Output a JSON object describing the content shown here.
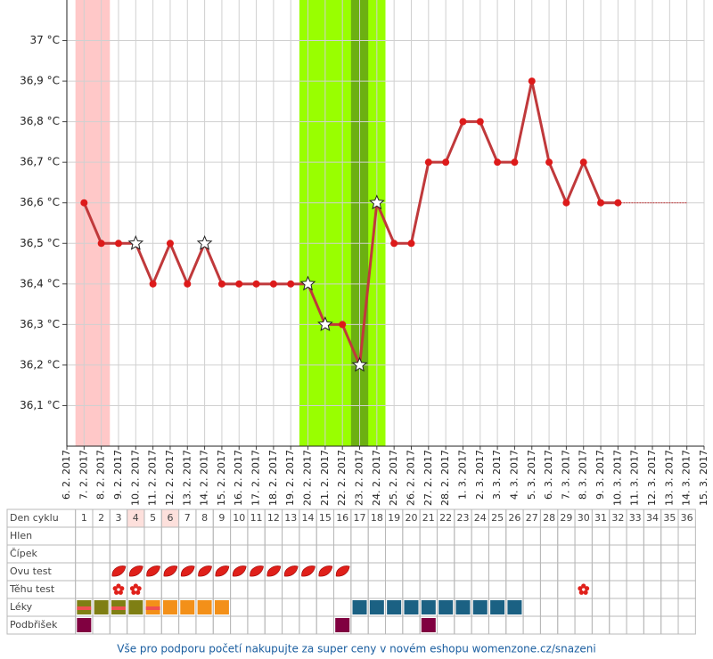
{
  "chart_data": {
    "type": "line",
    "x": [
      "6. 2. 2017",
      "7. 2. 2017",
      "8. 2. 2017",
      "9. 2. 2017",
      "10. 2. 2017",
      "11. 2. 2017",
      "12. 2. 2017",
      "13. 2. 2017",
      "14. 2. 2017",
      "15. 2. 2017",
      "16. 2. 2017",
      "17. 2. 2017",
      "18. 2. 2017",
      "19. 2. 2017",
      "20. 2. 2017",
      "21. 2. 2017",
      "22. 2. 2017",
      "23. 2. 2017",
      "24. 2. 2017",
      "25. 2. 2017",
      "26. 2. 2017",
      "27. 2. 2017",
      "28. 2. 2017",
      "1. 3. 2017",
      "2. 3. 2017",
      "3. 3. 2017",
      "4. 3. 2017",
      "5. 3. 2017",
      "6. 3. 2017",
      "7. 3. 2017",
      "8. 3. 2017",
      "9. 3. 2017",
      "10. 3. 2017",
      "11. 3. 2017",
      "12. 3. 2017",
      "13. 3. 2017",
      "14. 3. 2017",
      "15. 3. 2017"
    ],
    "series": [
      {
        "color": "#c0393b",
        "values": [
          null,
          36.6,
          36.5,
          36.5,
          36.5,
          36.4,
          36.5,
          36.4,
          36.5,
          36.4,
          36.4,
          36.4,
          36.4,
          36.4,
          36.4,
          36.3,
          36.3,
          36.2,
          36.6,
          36.5,
          36.5,
          36.7,
          36.7,
          36.8,
          36.8,
          36.7,
          36.7,
          36.9,
          36.7,
          36.6,
          36.7,
          36.6,
          36.6,
          null,
          null,
          null,
          null,
          null
        ],
        "markers": [
          null,
          "dot",
          "dot",
          "dot",
          "star",
          "dot",
          "dot",
          "dot",
          "star",
          "dot",
          "dot",
          "dot",
          "dot",
          "dot",
          "star",
          "star",
          "dot",
          "star",
          "star",
          "dot",
          "dot",
          "dot",
          "dot",
          "dot",
          "dot",
          "dot",
          "dot",
          "dot",
          "dot",
          "dot",
          "dot",
          "dot",
          "dot",
          null,
          null,
          null,
          null,
          null
        ]
      }
    ],
    "ylim": [
      36.0,
      37.1
    ],
    "yticks": [
      {
        "value": 36.1,
        "label": "36,1 °C"
      },
      {
        "value": 36.2,
        "label": "36,2 °C"
      },
      {
        "value": 36.3,
        "label": "36,3 °C"
      },
      {
        "value": 36.4,
        "label": "36,4 °C"
      },
      {
        "value": 36.5,
        "label": "36,5 °C"
      },
      {
        "value": 36.6,
        "label": "36,6 °C"
      },
      {
        "value": 36.7,
        "label": "36,7 °C"
      },
      {
        "value": 36.8,
        "label": "36,8 °C"
      },
      {
        "value": 36.9,
        "label": "36,9 °C"
      },
      {
        "value": 37.0,
        "label": "37 °C"
      }
    ],
    "grid": true,
    "bands": [
      {
        "first_day": 1,
        "last_day": 2,
        "color": "#ffc8c8"
      },
      {
        "first_day": 14,
        "last_day": 18,
        "color": "#99ff00"
      },
      {
        "first_day": 17,
        "last_day": 17,
        "color": "#6cb012"
      }
    ]
  },
  "table": {
    "header_label": "Den cyklu",
    "days": [
      1,
      2,
      3,
      4,
      5,
      6,
      7,
      8,
      9,
      10,
      11,
      12,
      13,
      14,
      15,
      16,
      17,
      18,
      19,
      20,
      21,
      22,
      23,
      24,
      25,
      26,
      27,
      28,
      29,
      30,
      31,
      32,
      33,
      34,
      35,
      36
    ],
    "highlighted_days": [
      4,
      6
    ],
    "rows": [
      {
        "label": "Hlen",
        "days": []
      },
      {
        "label": "Čípek",
        "days": []
      },
      {
        "label": "Ovu test",
        "icon": "drop",
        "color": "#e0201a",
        "days": [
          3,
          4,
          5,
          6,
          7,
          8,
          9,
          10,
          11,
          12,
          13,
          14,
          15,
          16
        ]
      },
      {
        "label": "Těhu test",
        "icon": "flower",
        "color": "#e0201a",
        "days": [
          3,
          4,
          30
        ]
      },
      {
        "label": "Léky",
        "icon": "pill",
        "items": [
          {
            "day": 1,
            "color": "#7f7f14",
            "stripe": "#f05050"
          },
          {
            "day": 2,
            "color": "#7f7f14"
          },
          {
            "day": 3,
            "color": "#7f7f14",
            "stripe": "#f05050"
          },
          {
            "day": 4,
            "color": "#7f7f14"
          },
          {
            "day": 5,
            "color": "#f39019",
            "stripe": "#f05050"
          },
          {
            "day": 6,
            "color": "#f39019"
          },
          {
            "day": 7,
            "color": "#f39019"
          },
          {
            "day": 8,
            "color": "#f39019"
          },
          {
            "day": 9,
            "color": "#f39019"
          },
          {
            "day": 17,
            "color": "#1b6183"
          },
          {
            "day": 18,
            "color": "#1b6183"
          },
          {
            "day": 19,
            "color": "#1b6183"
          },
          {
            "day": 20,
            "color": "#1b6183"
          },
          {
            "day": 21,
            "color": "#1b6183"
          },
          {
            "day": 22,
            "color": "#1b6183"
          },
          {
            "day": 23,
            "color": "#1b6183"
          },
          {
            "day": 24,
            "color": "#1b6183"
          },
          {
            "day": 25,
            "color": "#1b6183"
          },
          {
            "day": 26,
            "color": "#1b6183"
          }
        ]
      },
      {
        "label": "Podbřišek",
        "icon": "square",
        "color": "#800040",
        "days": [
          1,
          16,
          21
        ]
      }
    ]
  },
  "footer": "Vše pro podporu početí nakupujte za super ceny v novém eshopu womenzone.cz/snazeni"
}
